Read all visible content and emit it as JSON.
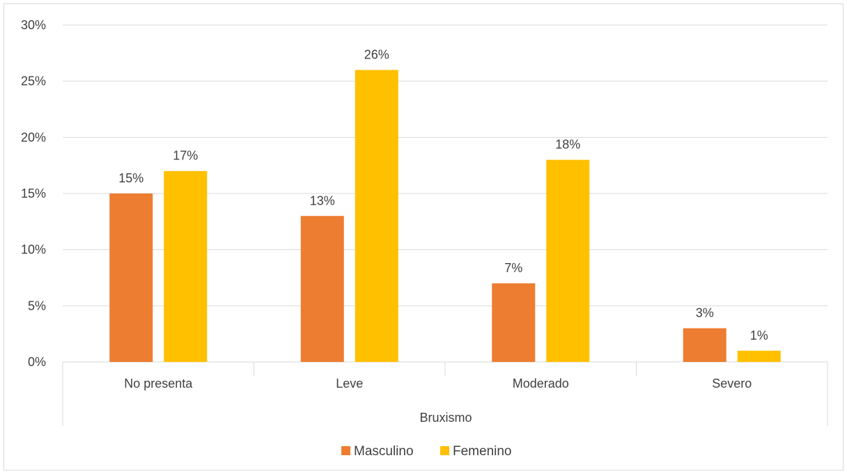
{
  "chart_data": {
    "type": "bar",
    "categories": [
      "No presenta",
      "Leve",
      "Moderado",
      "Severo"
    ],
    "series": [
      {
        "name": "Masculino",
        "values": [
          15,
          13,
          7,
          3
        ],
        "color": "#ED7D31"
      },
      {
        "name": "Femenino",
        "values": [
          17,
          26,
          18,
          1
        ],
        "color": "#FFC000"
      }
    ],
    "xlabel": "Bruxismo",
    "ylabel": "",
    "ylim": [
      0,
      30
    ],
    "yticks": [
      0,
      5,
      10,
      15,
      20,
      25,
      30
    ],
    "ytick_labels": [
      "0%",
      "5%",
      "10%",
      "15%",
      "20%",
      "25%",
      "30%"
    ],
    "data_labels": [
      [
        "15%",
        "13%",
        "7%",
        "3%"
      ],
      [
        "17%",
        "26%",
        "18%",
        "1%"
      ]
    ],
    "grid": true,
    "legend_position": "bottom",
    "colors": {
      "grid": "#D9D9D9",
      "text": "#404040",
      "border": "#D9D9D9"
    }
  }
}
